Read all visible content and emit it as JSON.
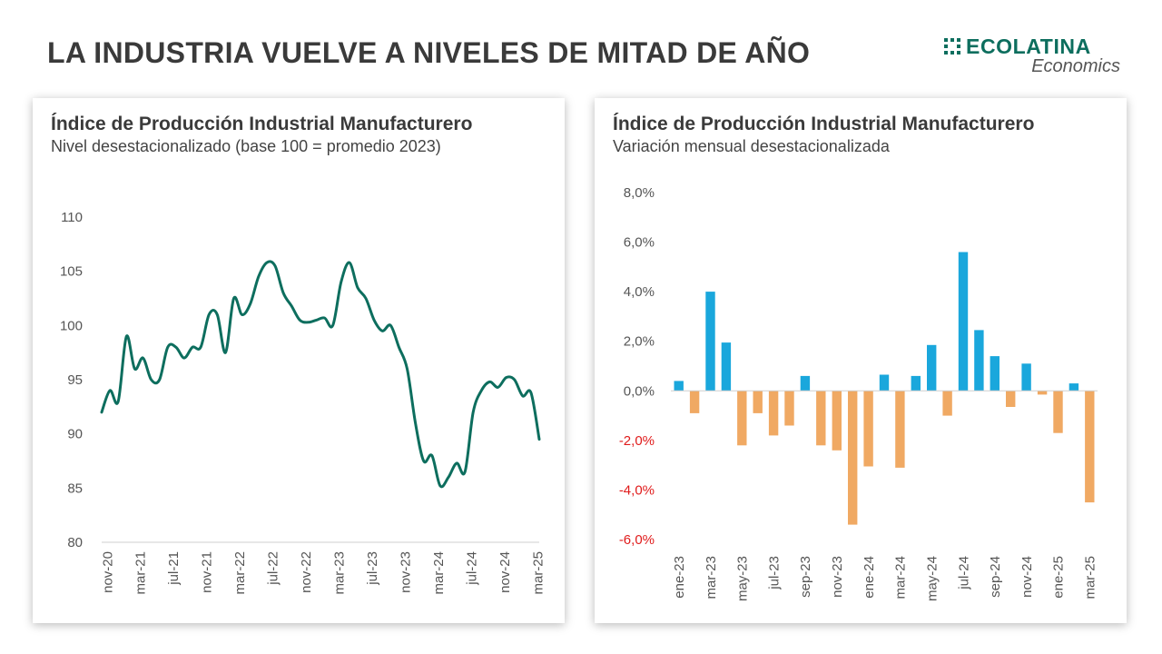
{
  "header": {
    "title": "LA INDUSTRIA VUELVE A NIVELES DE MITAD DE AÑO",
    "logo_name": "ECOLATINA",
    "logo_sub": "Economics"
  },
  "colors": {
    "line": "#0d6e5e",
    "positive_bar": "#1aa7dc",
    "negative_bar": "#f0a963",
    "negative_tick": "#e01b1b",
    "axis": "#cfcfcf"
  },
  "chart_data": [
    {
      "type": "line",
      "title": "Índice de Producción Industrial Manufacturero",
      "subtitle": "Nivel desestacionalizado (base 100 = promedio 2023)",
      "ylim": [
        80,
        110
      ],
      "yticks": [
        "80",
        "85",
        "90",
        "95",
        "100",
        "105",
        "110"
      ],
      "grid": false,
      "xticks": [
        "nov-20",
        "mar-21",
        "jul-21",
        "nov-21",
        "mar-22",
        "jul-22",
        "nov-22",
        "mar-23",
        "jul-23",
        "nov-23",
        "mar-24",
        "jul-24",
        "nov-24",
        "mar-25"
      ],
      "series": [
        {
          "values": [
            92.0,
            94.0,
            93.0,
            99.0,
            96.0,
            97.0,
            95.0,
            95.0,
            98.0,
            98.0,
            97.0,
            98.0,
            98.0,
            101.0,
            101.0,
            97.5,
            102.5,
            101.0,
            102.0,
            104.5,
            105.8,
            105.5,
            103.0,
            101.8,
            100.5,
            100.3,
            100.5,
            100.7,
            100.0,
            104.0,
            105.8,
            103.5,
            102.5,
            100.5,
            99.5,
            100.0,
            98.0,
            96.0,
            91.0,
            87.5,
            88.0,
            85.2,
            86.0,
            87.3,
            86.5,
            92.0,
            94.0,
            94.8,
            94.3,
            95.2,
            95.0,
            93.5,
            93.8,
            89.5
          ]
        }
      ]
    },
    {
      "type": "bar",
      "title": "Índice de Producción Industrial Manufacturero",
      "subtitle": "Variación mensual desestacionalizada",
      "ylim": [
        -6,
        8
      ],
      "yticks": [
        "-6,0%",
        "-4,0%",
        "-2,0%",
        "0,0%",
        "2,0%",
        "4,0%",
        "6,0%",
        "8,0%"
      ],
      "grid": false,
      "categories": [
        "ene-23",
        "feb-23",
        "mar-23",
        "abr-23",
        "may-23",
        "jun-23",
        "jul-23",
        "ago-23",
        "sep-23",
        "oct-23",
        "nov-23",
        "dic-23",
        "ene-24",
        "feb-24",
        "mar-24",
        "abr-24",
        "may-24",
        "jun-24",
        "jul-24",
        "ago-24",
        "sep-24",
        "oct-24",
        "nov-24",
        "dic-24",
        "ene-25",
        "feb-25",
        "mar-25"
      ],
      "xticks": [
        "ene-23",
        "mar-23",
        "may-23",
        "jul-23",
        "sep-23",
        "nov-23",
        "ene-24",
        "mar-24",
        "may-24",
        "jul-24",
        "sep-24",
        "nov-24",
        "ene-25",
        "mar-25"
      ],
      "values": [
        0.4,
        -0.9,
        4.0,
        1.95,
        -2.2,
        -0.9,
        -1.8,
        -1.4,
        0.6,
        -2.2,
        -2.4,
        -5.4,
        -3.05,
        0.65,
        -3.1,
        0.6,
        1.85,
        -1.0,
        5.6,
        2.45,
        1.4,
        -0.65,
        1.1,
        -0.15,
        -1.7,
        0.3,
        -4.5
      ]
    }
  ]
}
